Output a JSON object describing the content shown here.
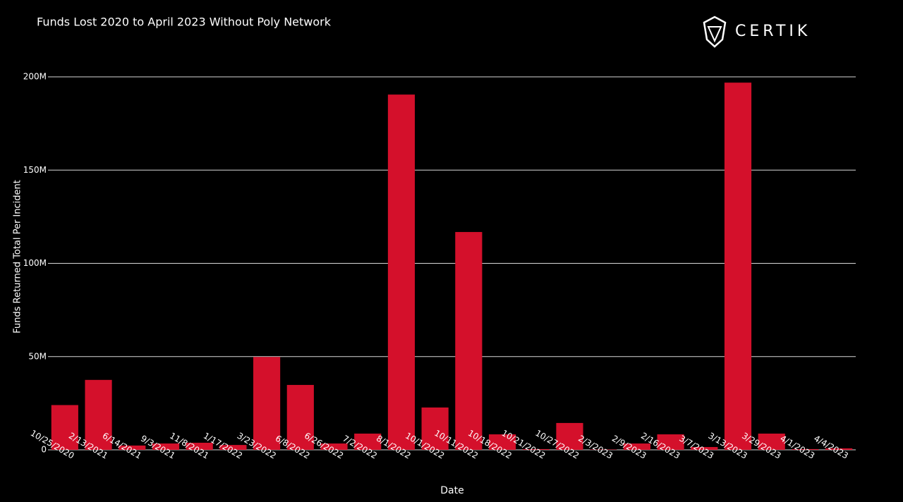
{
  "chart_data": {
    "type": "bar",
    "title": "Funds Lost 2020 to April 2023 Without Poly Network",
    "brand": "CERTIK",
    "x_label": "Date",
    "y_label": "Funds Returned Total Per Incident",
    "categories": [
      "10/25/2020",
      "2/13/2021",
      "6/14/2021",
      "9/3/2021",
      "11/8/2021",
      "1/17/2022",
      "3/23/2022",
      "6/8/2022",
      "6/26/2022",
      "7/2/2022",
      "8/1/2022",
      "10/1/2022",
      "10/11/2022",
      "10/18/2022",
      "10/21/2022",
      "10/27/2022",
      "2/3/2023",
      "2/9/2023",
      "2/16/2023",
      "3/7/2023",
      "3/13/2023",
      "3/29/2023",
      "4/1/2023",
      "4/4/2023"
    ],
    "values": [
      24000000,
      37500000,
      2300000,
      3400000,
      3800000,
      2600000,
      49800000,
      34800000,
      3400000,
      8700000,
      190500000,
      22700000,
      116800000,
      8300000,
      400000,
      14400000,
      200000,
      3400000,
      8300000,
      1500000,
      196900000,
      8700000,
      400000,
      800000
    ],
    "color": "#d4102b",
    "ylim": [
      0,
      200000000
    ],
    "yticks": [
      0,
      {
        "value": 50000000,
        "label": "50M"
      },
      {
        "value": 100000000,
        "label": "100M"
      },
      {
        "value": 150000000,
        "label": "150M"
      },
      {
        "value": 200000000,
        "label": "200M"
      }
    ],
    "grid": true
  }
}
